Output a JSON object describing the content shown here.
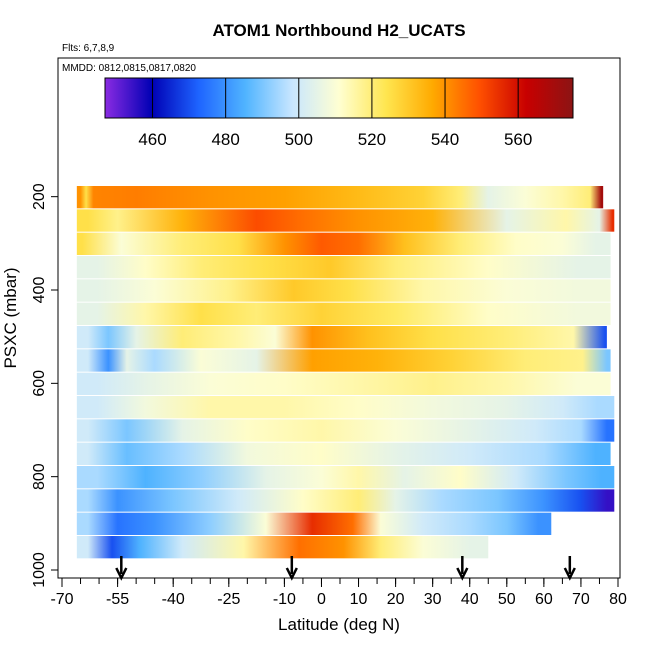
{
  "chart_data": {
    "type": "heatmap",
    "title": "ATOM1 Northbound H2_UCATS",
    "subtitle_flights": "Flts: 6,7,8,9",
    "subtitle_dates": "MMDD: 0812,0815,0817,0820",
    "xlabel": "Latitude (deg N)",
    "ylabel": "PSXC (mbar)",
    "xlim": [
      -70,
      80
    ],
    "ylim": [
      1000,
      100
    ],
    "x_ticks": [
      -70,
      -55,
      -40,
      -25,
      -10,
      0,
      10,
      20,
      30,
      40,
      50,
      60,
      70,
      80
    ],
    "y_ticks": [
      200,
      400,
      600,
      800,
      1000
    ],
    "colorbar": {
      "range": [
        447,
        575
      ],
      "ticks": [
        460,
        480,
        500,
        520,
        540,
        560
      ],
      "colors": [
        "#8a2be2",
        "#0000b4",
        "#1e64ff",
        "#50b4ff",
        "#c8e6ff",
        "#ffffd2",
        "#ffe650",
        "#ffaa00",
        "#ff5000",
        "#c80000",
        "#8c1414"
      ]
    },
    "arrows_latitude": [
      -54,
      -8,
      38,
      67
    ],
    "layers": [
      {
        "p": 200,
        "segments": [
          [
            -66,
            -64,
            540
          ],
          [
            -64,
            -63,
            525
          ],
          [
            -63,
            -60,
            542
          ],
          [
            -60,
            -40,
            543
          ],
          [
            -40,
            -20,
            540
          ],
          [
            -20,
            0,
            538
          ],
          [
            0,
            20,
            533
          ],
          [
            20,
            35,
            528
          ],
          [
            35,
            40,
            520
          ],
          [
            40,
            50,
            505
          ],
          [
            50,
            60,
            510
          ],
          [
            60,
            70,
            515
          ],
          [
            70,
            75,
            520
          ],
          [
            75,
            76,
            570
          ]
        ]
      },
      {
        "p": 250,
        "segments": [
          [
            -66,
            -60,
            525
          ],
          [
            -60,
            -50,
            518
          ],
          [
            -50,
            -25,
            535
          ],
          [
            -25,
            -10,
            550
          ],
          [
            -10,
            0,
            545
          ],
          [
            0,
            20,
            540
          ],
          [
            20,
            40,
            535
          ],
          [
            40,
            60,
            505
          ],
          [
            60,
            72,
            515
          ],
          [
            72,
            78,
            505
          ],
          [
            78,
            79,
            555
          ]
        ]
      },
      {
        "p": 300,
        "segments": [
          [
            -66,
            -63,
            525
          ],
          [
            -63,
            -45,
            510
          ],
          [
            -45,
            -30,
            520
          ],
          [
            -30,
            -15,
            525
          ],
          [
            -15,
            -5,
            540
          ],
          [
            -5,
            5,
            548
          ],
          [
            5,
            15,
            545
          ],
          [
            15,
            30,
            532
          ],
          [
            30,
            45,
            520
          ],
          [
            45,
            60,
            512
          ],
          [
            60,
            70,
            510
          ],
          [
            70,
            78,
            505
          ]
        ]
      },
      {
        "p": 350,
        "segments": [
          [
            -66,
            -55,
            505
          ],
          [
            -55,
            -40,
            512
          ],
          [
            -40,
            -25,
            520
          ],
          [
            -25,
            -5,
            525
          ],
          [
            -5,
            10,
            530
          ],
          [
            10,
            30,
            520
          ],
          [
            30,
            60,
            512
          ],
          [
            60,
            78,
            505
          ]
        ]
      },
      {
        "p": 400,
        "segments": [
          [
            -66,
            -55,
            505
          ],
          [
            -55,
            -35,
            510
          ],
          [
            -35,
            -15,
            518
          ],
          [
            -15,
            0,
            530
          ],
          [
            0,
            15,
            525
          ],
          [
            15,
            40,
            515
          ],
          [
            40,
            60,
            510
          ],
          [
            60,
            78,
            508
          ]
        ]
      },
      {
        "p": 450,
        "segments": [
          [
            -66,
            -55,
            505
          ],
          [
            -55,
            -40,
            515
          ],
          [
            -40,
            -25,
            525
          ],
          [
            -25,
            -10,
            520
          ],
          [
            -10,
            10,
            528
          ],
          [
            10,
            30,
            522
          ],
          [
            30,
            60,
            512
          ],
          [
            60,
            78,
            508
          ]
        ]
      },
      {
        "p": 500,
        "segments": [
          [
            -66,
            -60,
            500
          ],
          [
            -60,
            -55,
            490
          ],
          [
            -55,
            -45,
            505
          ],
          [
            -45,
            -30,
            520
          ],
          [
            -30,
            -15,
            515
          ],
          [
            -15,
            -10,
            510
          ],
          [
            -10,
            5,
            540
          ],
          [
            5,
            20,
            532
          ],
          [
            20,
            40,
            525
          ],
          [
            40,
            60,
            520
          ],
          [
            60,
            76,
            515
          ],
          [
            76,
            77,
            470
          ]
        ]
      },
      {
        "p": 550,
        "segments": [
          [
            -66,
            -60,
            500
          ],
          [
            -60,
            -55,
            480
          ],
          [
            -55,
            -50,
            505
          ],
          [
            -50,
            -40,
            495
          ],
          [
            -40,
            -25,
            510
          ],
          [
            -25,
            -10,
            505
          ],
          [
            -10,
            5,
            538
          ],
          [
            5,
            25,
            535
          ],
          [
            25,
            45,
            528
          ],
          [
            45,
            65,
            520
          ],
          [
            65,
            76,
            518
          ],
          [
            76,
            78,
            490
          ]
        ]
      },
      {
        "p": 600,
        "segments": [
          [
            -66,
            -55,
            500
          ],
          [
            -55,
            -40,
            505
          ],
          [
            -40,
            -20,
            510
          ],
          [
            -20,
            0,
            512
          ],
          [
            0,
            20,
            515
          ],
          [
            20,
            40,
            518
          ],
          [
            40,
            60,
            515
          ],
          [
            60,
            78,
            510
          ]
        ]
      },
      {
        "p": 650,
        "segments": [
          [
            -66,
            -55,
            500
          ],
          [
            -55,
            -40,
            508
          ],
          [
            -40,
            -20,
            515
          ],
          [
            -20,
            0,
            515
          ],
          [
            0,
            20,
            512
          ],
          [
            20,
            40,
            508
          ],
          [
            40,
            60,
            505
          ],
          [
            60,
            70,
            500
          ],
          [
            70,
            79,
            495
          ]
        ]
      },
      {
        "p": 700,
        "segments": [
          [
            -66,
            -60,
            500
          ],
          [
            -60,
            -45,
            490
          ],
          [
            -45,
            -30,
            505
          ],
          [
            -30,
            -10,
            512
          ],
          [
            -10,
            10,
            515
          ],
          [
            10,
            30,
            510
          ],
          [
            30,
            50,
            505
          ],
          [
            50,
            65,
            500
          ],
          [
            65,
            75,
            495
          ],
          [
            75,
            79,
            475
          ]
        ]
      },
      {
        "p": 750,
        "segments": [
          [
            -66,
            -60,
            500
          ],
          [
            -60,
            -45,
            488
          ],
          [
            -45,
            -30,
            495
          ],
          [
            -30,
            -10,
            508
          ],
          [
            -10,
            10,
            512
          ],
          [
            10,
            30,
            505
          ],
          [
            30,
            50,
            500
          ],
          [
            50,
            70,
            495
          ],
          [
            70,
            78,
            485
          ]
        ]
      },
      {
        "p": 800,
        "segments": [
          [
            -66,
            -55,
            495
          ],
          [
            -55,
            -40,
            485
          ],
          [
            -40,
            -25,
            492
          ],
          [
            -25,
            -5,
            505
          ],
          [
            -5,
            5,
            510
          ],
          [
            5,
            15,
            515
          ],
          [
            15,
            30,
            505
          ],
          [
            30,
            45,
            512
          ],
          [
            45,
            60,
            500
          ],
          [
            60,
            72,
            490
          ],
          [
            72,
            79,
            485
          ]
        ]
      },
      {
        "p": 850,
        "segments": [
          [
            -66,
            -60,
            495
          ],
          [
            -60,
            -50,
            480
          ],
          [
            -50,
            -30,
            490
          ],
          [
            -30,
            -15,
            500
          ],
          [
            -15,
            5,
            512
          ],
          [
            5,
            15,
            520
          ],
          [
            15,
            25,
            505
          ],
          [
            25,
            40,
            495
          ],
          [
            40,
            55,
            490
          ],
          [
            55,
            65,
            480
          ],
          [
            65,
            75,
            470
          ],
          [
            75,
            79,
            455
          ]
        ]
      },
      {
        "p": 900,
        "segments": [
          [
            -66,
            -60,
            495
          ],
          [
            -60,
            -50,
            475
          ],
          [
            -50,
            -40,
            480
          ],
          [
            -40,
            -20,
            492
          ],
          [
            -20,
            -10,
            510
          ],
          [
            -10,
            5,
            555
          ],
          [
            5,
            12,
            545
          ],
          [
            12,
            20,
            510
          ],
          [
            20,
            35,
            500
          ],
          [
            35,
            45,
            495
          ],
          [
            45,
            55,
            490
          ],
          [
            55,
            62,
            480
          ]
        ]
      },
      {
        "p": 950,
        "segments": [
          [
            -66,
            -60,
            500
          ],
          [
            -60,
            -53,
            470
          ],
          [
            -53,
            -45,
            485
          ],
          [
            -45,
            -30,
            500
          ],
          [
            -30,
            -12,
            515
          ],
          [
            -12,
            0,
            545
          ],
          [
            0,
            12,
            540
          ],
          [
            12,
            20,
            520
          ],
          [
            20,
            35,
            510
          ],
          [
            35,
            45,
            505
          ]
        ]
      }
    ]
  }
}
